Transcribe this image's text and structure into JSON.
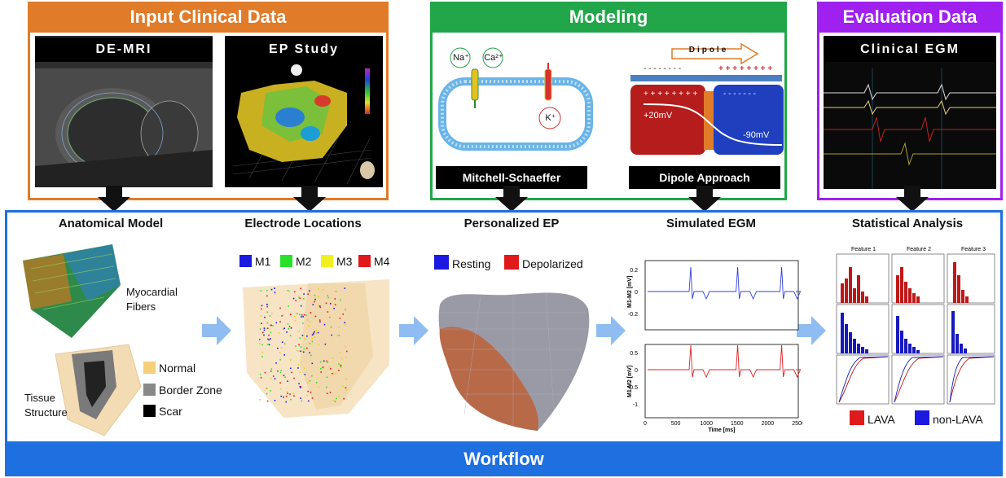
{
  "input": {
    "title": "Input Clinical Data",
    "demri_label": "DE-MRI",
    "ep_label": "EP Study"
  },
  "modeling": {
    "title": "Modeling",
    "na": "Na⁺",
    "ca": "Ca²⁺",
    "k": "K⁺",
    "dipole_word": "Dipole",
    "minus_row": "- - - - - - - -",
    "plus_row": "+ + + + + + + +",
    "plus_in": "+ + + + + + + +",
    "minus_in": "- - - - - - -",
    "v_pos": "+20mV",
    "v_neg": "-90mV",
    "mitchell": "Mitchell-Schaeffer",
    "dipole_approach": "Dipole Approach"
  },
  "evaluation": {
    "title": "Evaluation Data",
    "clinical_egm": "Clinical EGM"
  },
  "workflow": {
    "label": "Workflow",
    "anatomical": {
      "title": "Anatomical Model",
      "fibers": "Myocardial Fibers",
      "tissue": "Tissue Structure",
      "normal": "Normal",
      "border": "Border Zone",
      "scar": "Scar"
    },
    "electrodes": {
      "title": "Electrode Locations",
      "m1": "M1",
      "m2": "M2",
      "m3": "M3",
      "m4": "M4"
    },
    "personalized": {
      "title": "Personalized EP",
      "resting": "Resting",
      "depolarized": "Depolarized"
    },
    "simulated": {
      "title": "Simulated EGM",
      "ylabel_top": "M1-M2 [mV]",
      "ylabel_bottom": "M1-M2 [mV]",
      "xlabel": "Time [ms]",
      "top_ticks": [
        "0.2",
        "0",
        "-0.2"
      ],
      "bottom_ticks": [
        "0.5",
        "0",
        "-0.5",
        "-1"
      ],
      "x_ticks": [
        "0",
        "500",
        "1000",
        "1500",
        "2000",
        "2500"
      ]
    },
    "statistical": {
      "title": "Statistical Analysis",
      "feature1": "Feature 1",
      "feature2": "Feature 2",
      "feature3": "Feature 3",
      "lava": "LAVA",
      "nonlava": "non-LAVA"
    }
  },
  "colors": {
    "orange": "#e07b2a",
    "green": "#22a64a",
    "purple": "#a020f0",
    "blue": "#1e6fe0",
    "arrow": "#8fbdf2"
  }
}
